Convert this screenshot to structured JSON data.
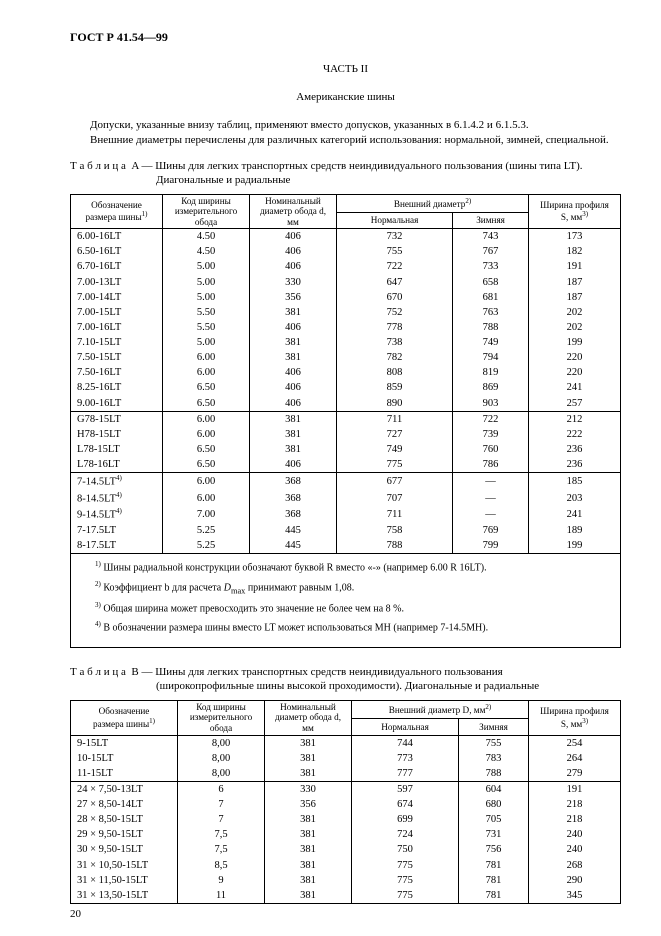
{
  "standard_code": "ГОСТ Р 41.54—99",
  "part_title": "ЧАСТЬ II",
  "subtitle": "Американские шины",
  "para1": "Допуски, указанные внизу таблиц, применяют вместо допусков, указанных в 6.1.4.2 и 6.1.5.3.",
  "para2": "Внешние диаметры перечислены для различных категорий использования: нормальной, зимней, специальной.",
  "tableA": {
    "caption_prefix": "Т а б л и ц а",
    "caption_letter": "A",
    "caption_rest": " — Шины для легких транспортных средств неиндивидуального пользования (шины типа LT).",
    "caption_line2": "Диагональные и радиальные",
    "head_col1_l1": "Обозначение",
    "head_col1_l2": "размера шины",
    "head_col1_sup": "1)",
    "head_col2_l1": "Код ширины",
    "head_col2_l2": "измерительного",
    "head_col2_l3": "обода",
    "head_col3_l1": "Номинальный",
    "head_col3_l2": "диаметр обода d,",
    "head_col3_l3": "мм",
    "head_diam": "Внешний диаметр",
    "head_diam_sup": "2)",
    "head_diam_norm": "Нормальная",
    "head_diam_winter": "Зимняя",
    "head_col5_l1": "Ширина профиля",
    "head_col5_l2": "S, мм",
    "head_col5_sup": "3)",
    "groups": [
      [
        {
          "c1": "6.00-16LT",
          "sup": "",
          "c2": "4.50",
          "c3": "406",
          "c4": "732",
          "c5": "743",
          "c6": "173"
        },
        {
          "c1": "6.50-16LT",
          "sup": "",
          "c2": "4.50",
          "c3": "406",
          "c4": "755",
          "c5": "767",
          "c6": "182"
        },
        {
          "c1": "6.70-16LT",
          "sup": "",
          "c2": "5.00",
          "c3": "406",
          "c4": "722",
          "c5": "733",
          "c6": "191"
        },
        {
          "c1": "7.00-13LT",
          "sup": "",
          "c2": "5.00",
          "c3": "330",
          "c4": "647",
          "c5": "658",
          "c6": "187"
        },
        {
          "c1": "7.00-14LT",
          "sup": "",
          "c2": "5.00",
          "c3": "356",
          "c4": "670",
          "c5": "681",
          "c6": "187"
        },
        {
          "c1": "7.00-15LT",
          "sup": "",
          "c2": "5.50",
          "c3": "381",
          "c4": "752",
          "c5": "763",
          "c6": "202"
        },
        {
          "c1": "7.00-16LT",
          "sup": "",
          "c2": "5.50",
          "c3": "406",
          "c4": "778",
          "c5": "788",
          "c6": "202"
        },
        {
          "c1": "7.10-15LT",
          "sup": "",
          "c2": "5.00",
          "c3": "381",
          "c4": "738",
          "c5": "749",
          "c6": "199"
        },
        {
          "c1": "7.50-15LT",
          "sup": "",
          "c2": "6.00",
          "c3": "381",
          "c4": "782",
          "c5": "794",
          "c6": "220"
        },
        {
          "c1": "7.50-16LT",
          "sup": "",
          "c2": "6.00",
          "c3": "406",
          "c4": "808",
          "c5": "819",
          "c6": "220"
        },
        {
          "c1": "8.25-16LT",
          "sup": "",
          "c2": "6.50",
          "c3": "406",
          "c4": "859",
          "c5": "869",
          "c6": "241"
        },
        {
          "c1": "9.00-16LT",
          "sup": "",
          "c2": "6.50",
          "c3": "406",
          "c4": "890",
          "c5": "903",
          "c6": "257"
        }
      ],
      [
        {
          "c1": "G78-15LT",
          "sup": "",
          "c2": "6.00",
          "c3": "381",
          "c4": "711",
          "c5": "722",
          "c6": "212"
        },
        {
          "c1": "H78-15LT",
          "sup": "",
          "c2": "6.00",
          "c3": "381",
          "c4": "727",
          "c5": "739",
          "c6": "222"
        },
        {
          "c1": "L78-15LT",
          "sup": "",
          "c2": "6.50",
          "c3": "381",
          "c4": "749",
          "c5": "760",
          "c6": "236"
        },
        {
          "c1": "L78-16LT",
          "sup": "",
          "c2": "6.50",
          "c3": "406",
          "c4": "775",
          "c5": "786",
          "c6": "236"
        }
      ],
      [
        {
          "c1": "7-14.5LT",
          "sup": "4)",
          "c2": "6.00",
          "c3": "368",
          "c4": "677",
          "c5": "—",
          "c6": "185"
        },
        {
          "c1": "8-14.5LT",
          "sup": "4)",
          "c2": "6.00",
          "c3": "368",
          "c4": "707",
          "c5": "—",
          "c6": "203"
        },
        {
          "c1": "9-14.5LT",
          "sup": "4)",
          "c2": "7.00",
          "c3": "368",
          "c4": "711",
          "c5": "—",
          "c6": "241"
        },
        {
          "c1": "7-17.5LT",
          "sup": "",
          "c2": "5.25",
          "c3": "445",
          "c4": "758",
          "c5": "769",
          "c6": "189"
        },
        {
          "c1": "8-17.5LT",
          "sup": "",
          "c2": "5.25",
          "c3": "445",
          "c4": "788",
          "c5": "799",
          "c6": "199"
        }
      ]
    ],
    "footnotes": {
      "n1_sup": "1)",
      "n1": " Шины радиальной конструкции обозначают буквой  R  вместо «-» (например 6.00 R 16LT).",
      "n2_sup": "2)",
      "n2_a": " Коэффициент b для расчета ",
      "n2_i": "D",
      "n2_sub": "max",
      "n2_b": " принимают равным 1,08.",
      "n3_sup": "3)",
      "n3": " Общая ширина может превосходить это значение не более чем на 8 %.",
      "n4_sup": "4)",
      "n4": " В обозначении размера шины вместо LT может использоваться MH (например 7-14.5MH)."
    }
  },
  "tableB": {
    "caption_prefix": "Т а б л и ц а",
    "caption_letter": "B",
    "caption_rest": " — Шины для легких транспортных средств неиндивидуального пользования",
    "caption_line2": "(широкопрофильные шины высокой проходимости). Диагональные и радиальные",
    "head_diam": "Внешний диаметр D, мм",
    "head_diam_sup": "2)",
    "groups": [
      [
        {
          "c1": "9-15LT",
          "c2": "8,00",
          "c3": "381",
          "c4": "744",
          "c5": "755",
          "c6": "254"
        },
        {
          "c1": "10-15LT",
          "c2": "8,00",
          "c3": "381",
          "c4": "773",
          "c5": "783",
          "c6": "264"
        },
        {
          "c1": "11-15LT",
          "c2": "8,00",
          "c3": "381",
          "c4": "777",
          "c5": "788",
          "c6": "279"
        }
      ],
      [
        {
          "c1": "24 × 7,50-13LT",
          "c2": "6",
          "c3": "330",
          "c4": "597",
          "c5": "604",
          "c6": "191"
        },
        {
          "c1": "27 × 8,50-14LT",
          "c2": "7",
          "c3": "356",
          "c4": "674",
          "c5": "680",
          "c6": "218"
        },
        {
          "c1": "28 × 8,50-15LT",
          "c2": "7",
          "c3": "381",
          "c4": "699",
          "c5": "705",
          "c6": "218"
        },
        {
          "c1": "29 × 9,50-15LT",
          "c2": "7,5",
          "c3": "381",
          "c4": "724",
          "c5": "731",
          "c6": "240"
        },
        {
          "c1": "30 × 9,50-15LT",
          "c2": "7,5",
          "c3": "381",
          "c4": "750",
          "c5": "756",
          "c6": "240"
        },
        {
          "c1": "31 × 10,50-15LT",
          "c2": "8,5",
          "c3": "381",
          "c4": "775",
          "c5": "781",
          "c6": "268"
        },
        {
          "c1": "31 × 11,50-15LT",
          "c2": "9",
          "c3": "381",
          "c4": "775",
          "c5": "781",
          "c6": "290"
        },
        {
          "c1": "31 × 13,50-15LT",
          "c2": "11",
          "c3": "381",
          "c4": "775",
          "c5": "781",
          "c6": "345"
        }
      ]
    ]
  },
  "page_number": "20"
}
